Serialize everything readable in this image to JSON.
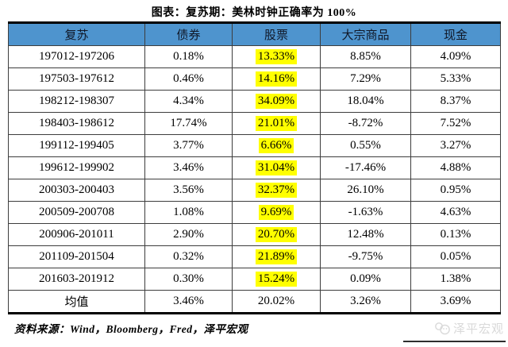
{
  "title": "图表：复苏期：美林时钟正确率为 100%",
  "chart_data": {
    "type": "table",
    "title": "图表：复苏期：美林时钟正确率为 100%",
    "columns": [
      "复苏",
      "债券",
      "股票",
      "大宗商品",
      "现金"
    ],
    "rows": [
      [
        "197012-197206",
        "0.18%",
        "13.33%",
        "8.85%",
        "4.09%"
      ],
      [
        "197503-197612",
        "0.46%",
        "14.16%",
        "7.29%",
        "5.33%"
      ],
      [
        "198212-198307",
        "4.34%",
        "34.09%",
        "18.04%",
        "8.37%"
      ],
      [
        "198403-198612",
        "17.74%",
        "21.01%",
        "-8.72%",
        "7.52%"
      ],
      [
        "199112-199405",
        "3.77%",
        "6.66%",
        "0.55%",
        "3.27%"
      ],
      [
        "199612-199902",
        "3.46%",
        "31.04%",
        "-17.46%",
        "4.88%"
      ],
      [
        "200303-200403",
        "3.56%",
        "32.37%",
        "26.10%",
        "0.95%"
      ],
      [
        "200509-200708",
        "1.08%",
        "9.69%",
        "-1.63%",
        "4.63%"
      ],
      [
        "200906-201011",
        "2.90%",
        "20.70%",
        "12.48%",
        "0.13%"
      ],
      [
        "201109-201504",
        "0.32%",
        "21.89%",
        "-9.75%",
        "0.05%"
      ],
      [
        "201603-201912",
        "0.30%",
        "15.24%",
        "0.09%",
        "1.38%"
      ]
    ],
    "mean_row": [
      "均值",
      "3.46%",
      "20.02%",
      "3.26%",
      "3.69%"
    ],
    "highlighted_column": "股票",
    "highlighted_column_index": 2
  },
  "footer": {
    "source": "资料来源：Wind，Bloomberg，Fred，泽平宏观"
  },
  "watermark": {
    "label": "泽平宏观"
  },
  "colors": {
    "header_bg": "#4E94CE",
    "highlight": "#FFFF00",
    "border": "#000000",
    "watermark_gray": "#D9D9D9"
  }
}
